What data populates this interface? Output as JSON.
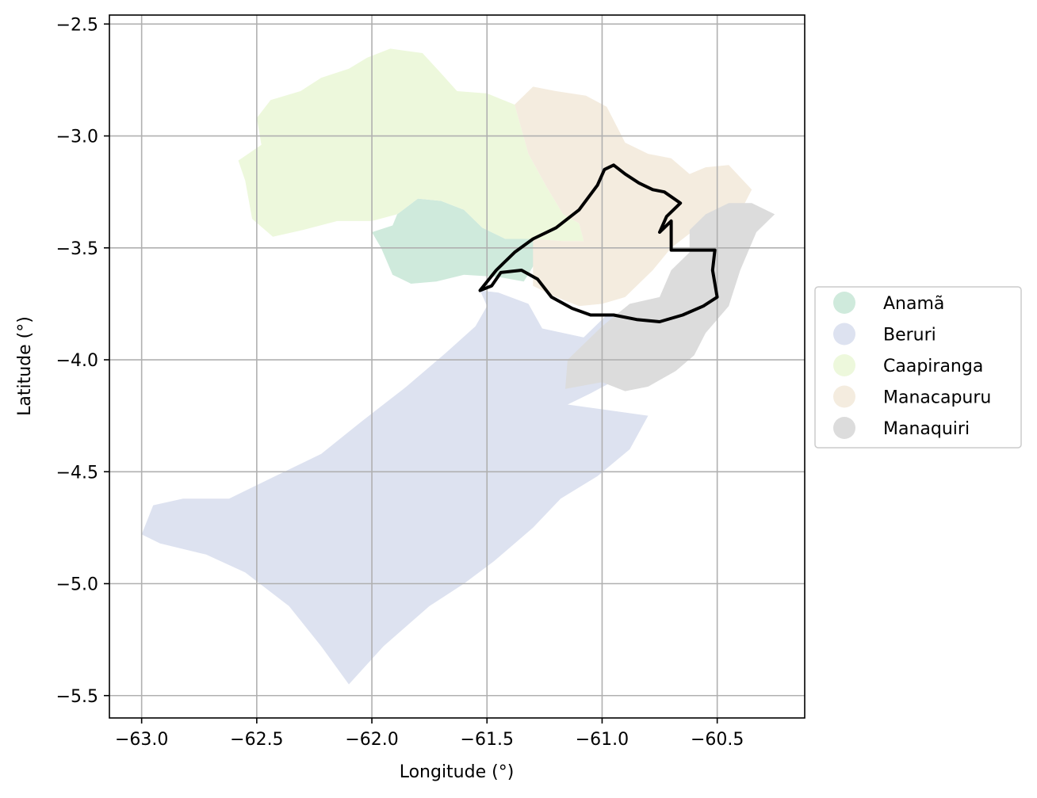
{
  "chart_data": {
    "type": "map",
    "xlabel": "Longitude (°)",
    "ylabel": "Latitude (°)",
    "xlim": [
      -63.14,
      -60.12
    ],
    "ylim": [
      -5.6,
      -2.46
    ],
    "xticks": [
      -63.0,
      -62.5,
      -62.0,
      -61.5,
      -61.0,
      -60.5
    ],
    "xtick_labels": [
      "−63.0",
      "−62.5",
      "−62.0",
      "−61.5",
      "−61.0",
      "−60.5"
    ],
    "yticks": [
      -2.5,
      -3.0,
      -3.5,
      -4.0,
      -4.5,
      -5.0,
      -5.5
    ],
    "ytick_labels": [
      "−2.5",
      "−3.0",
      "−3.5",
      "−4.0",
      "−4.5",
      "−5.0",
      "−5.5"
    ],
    "grid": true,
    "legend_position": "center-right",
    "regions": [
      {
        "name": "Anamã",
        "color": "#cfeadc",
        "polygon": [
          [
            -61.89,
            -3.35
          ],
          [
            -61.8,
            -3.28
          ],
          [
            -61.7,
            -3.29
          ],
          [
            -61.6,
            -3.33
          ],
          [
            -61.52,
            -3.41
          ],
          [
            -61.42,
            -3.46
          ],
          [
            -61.3,
            -3.46
          ],
          [
            -61.28,
            -3.55
          ],
          [
            -61.34,
            -3.65
          ],
          [
            -61.45,
            -3.63
          ],
          [
            -61.6,
            -3.62
          ],
          [
            -61.72,
            -3.65
          ],
          [
            -61.83,
            -3.66
          ],
          [
            -61.91,
            -3.62
          ],
          [
            -61.96,
            -3.5
          ],
          [
            -62.0,
            -3.43
          ],
          [
            -61.91,
            -3.4
          ]
        ]
      },
      {
        "name": "Beruri",
        "color": "#dde2f0",
        "polygon": [
          [
            -61.53,
            -3.69
          ],
          [
            -61.45,
            -3.7
          ],
          [
            -61.32,
            -3.75
          ],
          [
            -61.26,
            -3.86
          ],
          [
            -61.08,
            -3.9
          ],
          [
            -60.98,
            -3.8
          ],
          [
            -60.88,
            -3.82
          ],
          [
            -60.8,
            -3.9
          ],
          [
            -60.86,
            -4.0
          ],
          [
            -60.96,
            -4.1
          ],
          [
            -61.05,
            -4.15
          ],
          [
            -61.15,
            -4.2
          ],
          [
            -60.8,
            -4.25
          ],
          [
            -60.88,
            -4.4
          ],
          [
            -61.02,
            -4.52
          ],
          [
            -61.18,
            -4.62
          ],
          [
            -61.3,
            -4.75
          ],
          [
            -61.47,
            -4.9
          ],
          [
            -61.6,
            -5.0
          ],
          [
            -61.75,
            -5.1
          ],
          [
            -61.95,
            -5.28
          ],
          [
            -62.1,
            -5.45
          ],
          [
            -62.22,
            -5.28
          ],
          [
            -62.36,
            -5.1
          ],
          [
            -62.55,
            -4.95
          ],
          [
            -62.72,
            -4.87
          ],
          [
            -62.92,
            -4.82
          ],
          [
            -63.0,
            -4.78
          ],
          [
            -62.95,
            -4.65
          ],
          [
            -62.82,
            -4.62
          ],
          [
            -62.62,
            -4.62
          ],
          [
            -62.42,
            -4.52
          ],
          [
            -62.22,
            -4.42
          ],
          [
            -62.05,
            -4.28
          ],
          [
            -61.85,
            -4.12
          ],
          [
            -61.68,
            -3.97
          ],
          [
            -61.55,
            -3.85
          ],
          [
            -61.5,
            -3.76
          ]
        ]
      },
      {
        "name": "Caapiranga",
        "color": "#edf8dc",
        "polygon": [
          [
            -62.58,
            -3.11
          ],
          [
            -62.48,
            -3.04
          ],
          [
            -62.5,
            -2.92
          ],
          [
            -62.44,
            -2.84
          ],
          [
            -62.31,
            -2.8
          ],
          [
            -62.22,
            -2.74
          ],
          [
            -62.1,
            -2.7
          ],
          [
            -62.02,
            -2.65
          ],
          [
            -61.92,
            -2.61
          ],
          [
            -61.78,
            -2.63
          ],
          [
            -61.7,
            -2.72
          ],
          [
            -61.63,
            -2.8
          ],
          [
            -61.5,
            -2.81
          ],
          [
            -61.38,
            -2.86
          ],
          [
            -61.32,
            -3.08
          ],
          [
            -61.24,
            -3.23
          ],
          [
            -61.17,
            -3.35
          ],
          [
            -61.1,
            -3.39
          ],
          [
            -61.08,
            -3.47
          ],
          [
            -61.17,
            -3.47
          ],
          [
            -61.3,
            -3.46
          ],
          [
            -61.42,
            -3.46
          ],
          [
            -61.52,
            -3.41
          ],
          [
            -61.6,
            -3.33
          ],
          [
            -61.7,
            -3.29
          ],
          [
            -61.8,
            -3.28
          ],
          [
            -61.89,
            -3.35
          ],
          [
            -62.0,
            -3.38
          ],
          [
            -62.15,
            -3.38
          ],
          [
            -62.3,
            -3.42
          ],
          [
            -62.43,
            -3.45
          ],
          [
            -62.52,
            -3.37
          ],
          [
            -62.55,
            -3.2
          ]
        ]
      },
      {
        "name": "Manacapuru",
        "color": "#f4ecdf",
        "polygon": [
          [
            -61.38,
            -2.86
          ],
          [
            -61.3,
            -2.78
          ],
          [
            -61.2,
            -2.8
          ],
          [
            -61.07,
            -2.82
          ],
          [
            -60.98,
            -2.87
          ],
          [
            -60.9,
            -3.03
          ],
          [
            -60.8,
            -3.08
          ],
          [
            -60.7,
            -3.1
          ],
          [
            -60.62,
            -3.17
          ],
          [
            -60.55,
            -3.14
          ],
          [
            -60.45,
            -3.13
          ],
          [
            -60.35,
            -3.24
          ],
          [
            -60.38,
            -3.3
          ],
          [
            -60.5,
            -3.38
          ],
          [
            -60.6,
            -3.42
          ],
          [
            -60.7,
            -3.5
          ],
          [
            -60.78,
            -3.6
          ],
          [
            -60.9,
            -3.72
          ],
          [
            -61.0,
            -3.75
          ],
          [
            -61.1,
            -3.76
          ],
          [
            -61.2,
            -3.72
          ],
          [
            -61.3,
            -3.67
          ],
          [
            -61.3,
            -3.55
          ],
          [
            -61.3,
            -3.46
          ],
          [
            -61.17,
            -3.47
          ],
          [
            -61.08,
            -3.47
          ],
          [
            -61.1,
            -3.39
          ],
          [
            -61.17,
            -3.35
          ],
          [
            -61.24,
            -3.23
          ],
          [
            -61.32,
            -3.08
          ]
        ]
      },
      {
        "name": "Manaquiri",
        "color": "#dcdcdc",
        "polygon": [
          [
            -60.55,
            -3.35
          ],
          [
            -60.45,
            -3.3
          ],
          [
            -60.35,
            -3.3
          ],
          [
            -60.25,
            -3.35
          ],
          [
            -60.33,
            -3.43
          ],
          [
            -60.4,
            -3.6
          ],
          [
            -60.45,
            -3.76
          ],
          [
            -60.55,
            -3.88
          ],
          [
            -60.6,
            -3.98
          ],
          [
            -60.68,
            -4.05
          ],
          [
            -60.8,
            -4.12
          ],
          [
            -60.9,
            -4.14
          ],
          [
            -61.0,
            -4.1
          ],
          [
            -61.16,
            -4.13
          ],
          [
            -61.15,
            -4.0
          ],
          [
            -61.0,
            -3.85
          ],
          [
            -60.88,
            -3.75
          ],
          [
            -60.75,
            -3.72
          ],
          [
            -60.7,
            -3.6
          ],
          [
            -60.62,
            -3.52
          ],
          [
            -60.62,
            -3.42
          ]
        ]
      }
    ],
    "highlight_outline": {
      "color": "#000000",
      "polygon": [
        [
          -61.53,
          -3.69
        ],
        [
          -61.46,
          -3.6
        ],
        [
          -61.38,
          -3.52
        ],
        [
          -61.3,
          -3.46
        ],
        [
          -61.2,
          -3.41
        ],
        [
          -61.1,
          -3.33
        ],
        [
          -61.02,
          -3.22
        ],
        [
          -60.99,
          -3.15
        ],
        [
          -60.95,
          -3.13
        ],
        [
          -60.9,
          -3.17
        ],
        [
          -60.84,
          -3.21
        ],
        [
          -60.78,
          -3.24
        ],
        [
          -60.73,
          -3.25
        ],
        [
          -60.66,
          -3.3
        ],
        [
          -60.72,
          -3.36
        ],
        [
          -60.75,
          -3.43
        ],
        [
          -60.7,
          -3.38
        ],
        [
          -60.7,
          -3.51
        ],
        [
          -60.51,
          -3.51
        ],
        [
          -60.52,
          -3.6
        ],
        [
          -60.5,
          -3.72
        ],
        [
          -60.56,
          -3.76
        ],
        [
          -60.65,
          -3.8
        ],
        [
          -60.75,
          -3.83
        ],
        [
          -60.85,
          -3.82
        ],
        [
          -60.95,
          -3.8
        ],
        [
          -61.05,
          -3.8
        ],
        [
          -61.13,
          -3.77
        ],
        [
          -61.22,
          -3.72
        ],
        [
          -61.28,
          -3.64
        ],
        [
          -61.35,
          -3.6
        ],
        [
          -61.44,
          -3.61
        ],
        [
          -61.48,
          -3.67
        ]
      ]
    }
  }
}
